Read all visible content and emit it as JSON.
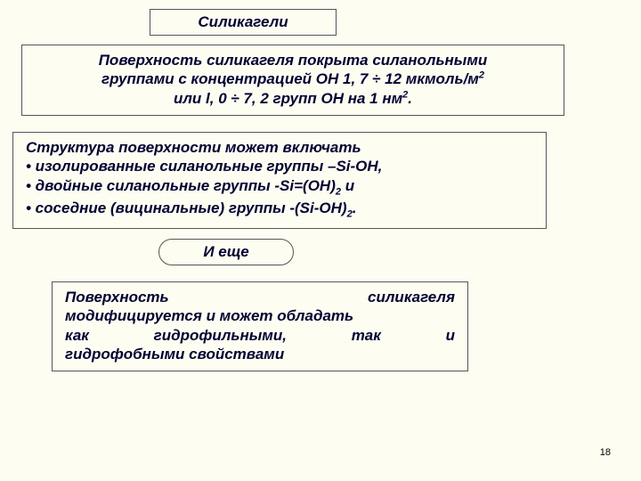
{
  "title": "Силикагели",
  "intro": {
    "line1_a": "Поверхность силикагеля покрыта силанольными",
    "line2_a": "группами с концентрацией ОН 1, 7 ÷ 12 мкмоль/м",
    "sup2": "2",
    "line3_a": "или l, 0 ÷ 7, 2 групп ОН на 1 нм",
    "sup2b": "2",
    "dot": "."
  },
  "structure": {
    "heading": "Структура поверхности может включать",
    "b1": "• изолированные силанольные группы –Si-OH,",
    "b2a": "• двойные силанольные группы -Si=(OH)",
    "b2sub": "2",
    "b2b": " и",
    "b3a": "• соседние (вицинальные) группы -(Si-OH)",
    "b3sub": "2",
    "b3b": "."
  },
  "and_more": "И еще",
  "modification": {
    "l1": "Поверхность",
    "l1b": "силикагеля",
    "l2": "модифицируется и может обладать",
    "l3a": "как",
    "l3b": "гидрофильными,",
    "l3c": "так",
    "l3d": "и",
    "l4": "гидрофобными свойствами"
  },
  "page": "18",
  "colors": {
    "bg": "#fdfdf2",
    "text": "#000033",
    "border": "#555555"
  }
}
